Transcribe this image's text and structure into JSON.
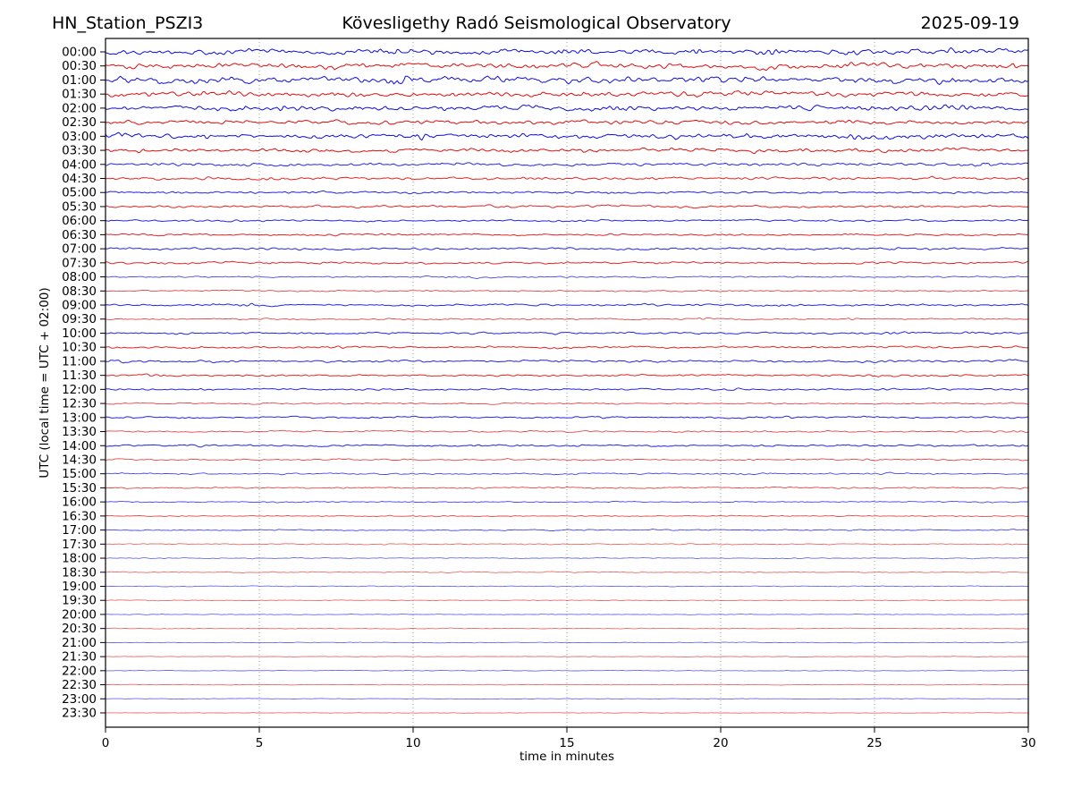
{
  "header": {
    "station": "HN_Station_PSZI3",
    "observatory": "Kövesligethy Radó Seismological Observatory",
    "date": "2025-09-19"
  },
  "chart_data": {
    "type": "line",
    "variant": "helicorder_daily_seismogram",
    "title": "HN_Station_PSZI3 — Kövesligethy Radó Seismological Observatory — 2025-09-19",
    "xlabel": "time in minutes",
    "ylabel": "UTC (local time = UTC + 02:00)",
    "xlim": [
      0,
      30
    ],
    "x_ticks": [
      0,
      5,
      10,
      15,
      20,
      25,
      30
    ],
    "grid_minutes": [
      5,
      10,
      15,
      20,
      25
    ],
    "grid_style": "dotted",
    "legend": "none",
    "minutes_per_row": 30,
    "rows_per_day": 48,
    "color_rule": "traces alternate blue (hh:00) and red (hh:30)",
    "colors": {
      "blue": "#0000dd",
      "red": "#dd0000",
      "grid": "#999999",
      "axis": "#000000",
      "background": "#ffffff"
    },
    "amplitude_note": "amp = relative noise half-amplitude in px; bursts = [minute, gain, width_minutes]",
    "rows": [
      {
        "label": "00:00",
        "color": "blue",
        "amp": 3.2,
        "bursts": [
          [
            9.3,
            1.8
          ],
          [
            12.6,
            1.5
          ],
          [
            15.0,
            1.9
          ],
          [
            19.2,
            3.2,
            0.15
          ],
          [
            21.6,
            1.7
          ],
          [
            24.4,
            1.5
          ],
          [
            27.6,
            1.4
          ]
        ]
      },
      {
        "label": "00:30",
        "color": "red",
        "amp": 3.2,
        "bursts": [
          [
            2.4,
            1.4
          ],
          [
            7.1,
            1.4
          ],
          [
            15.8,
            1.9,
            0.5
          ],
          [
            21.4,
            1.6
          ],
          [
            24.6,
            1.5
          ],
          [
            29.3,
            1.7
          ]
        ]
      },
      {
        "label": "01:00",
        "color": "blue",
        "amp": 3.8,
        "bursts": [
          [
            1.8,
            1.5
          ],
          [
            9.8,
            1.9,
            0.4
          ],
          [
            14.4,
            1.4
          ],
          [
            20.6,
            1.3
          ],
          [
            27.2,
            1.5
          ]
        ]
      },
      {
        "label": "01:30",
        "color": "red",
        "amp": 3.0,
        "bursts": [
          [
            4.2,
            1.3
          ],
          [
            8.4,
            1.5
          ],
          [
            14.9,
            1.3
          ],
          [
            19.6,
            1.4
          ],
          [
            26.6,
            1.4
          ]
        ]
      },
      {
        "label": "02:00",
        "color": "blue",
        "amp": 3.0,
        "bursts": [
          [
            5.6,
            1.3
          ],
          [
            11.2,
            1.3
          ],
          [
            16.6,
            1.4
          ],
          [
            23.2,
            1.3
          ],
          [
            27.6,
            1.4
          ]
        ]
      },
      {
        "label": "02:30",
        "color": "red",
        "amp": 2.6,
        "bursts": [
          [
            3.1,
            1.3
          ],
          [
            10.3,
            1.4
          ],
          [
            18.1,
            1.3
          ],
          [
            24.9,
            1.3
          ]
        ]
      },
      {
        "label": "03:00",
        "color": "blue",
        "amp": 3.0,
        "bursts": [
          [
            0.6,
            1.5
          ],
          [
            10.1,
            1.6
          ],
          [
            16.8,
            1.3
          ],
          [
            24.3,
            1.5
          ]
        ]
      },
      {
        "label": "03:30",
        "color": "red",
        "amp": 2.4,
        "bursts": [
          [
            1.1,
            1.3
          ],
          [
            9.4,
            1.2
          ],
          [
            21.2,
            1.3
          ],
          [
            27.4,
            1.2
          ]
        ]
      },
      {
        "label": "04:00",
        "color": "blue",
        "amp": 1.8,
        "bursts": [
          [
            6.3,
            1.3
          ],
          [
            17.2,
            1.2
          ],
          [
            28.7,
            1.8,
            0.3
          ]
        ]
      },
      {
        "label": "04:30",
        "color": "red",
        "amp": 1.8,
        "bursts": [
          [
            4.4,
            1.2
          ],
          [
            13.6,
            1.2
          ],
          [
            22.5,
            1.2
          ]
        ]
      },
      {
        "label": "05:00",
        "color": "blue",
        "amp": 1.5,
        "bursts": [
          [
            8.2,
            1.2
          ],
          [
            19.4,
            1.2
          ]
        ]
      },
      {
        "label": "05:30",
        "color": "red",
        "amp": 1.4,
        "bursts": [
          [
            5.3,
            1.2
          ],
          [
            16.2,
            1.2
          ],
          [
            26.8,
            1.2
          ]
        ]
      },
      {
        "label": "06:00",
        "color": "blue",
        "amp": 1.3,
        "bursts": [
          [
            3.5,
            1.6,
            0.25
          ],
          [
            14.3,
            1.2
          ],
          [
            23.6,
            1.2
          ]
        ]
      },
      {
        "label": "06:30",
        "color": "red",
        "amp": 1.2,
        "bursts": [
          [
            9.2,
            1.2
          ],
          [
            20.4,
            1.2
          ]
        ]
      },
      {
        "label": "07:00",
        "color": "blue",
        "amp": 1.3,
        "bursts": [
          [
            6.4,
            1.2
          ],
          [
            16.5,
            1.2
          ],
          [
            25.6,
            1.6,
            0.3
          ]
        ]
      },
      {
        "label": "07:30",
        "color": "red",
        "amp": 1.3,
        "bursts": [
          [
            2.1,
            1.3
          ],
          [
            4.3,
            1.3
          ],
          [
            14.7,
            1.2
          ],
          [
            24.2,
            1.2
          ]
        ]
      },
      {
        "label": "08:00",
        "color": "blue",
        "amp": 0.9,
        "bursts": [
          [
            11.7,
            2.1,
            0.7
          ]
        ]
      },
      {
        "label": "08:30",
        "color": "red",
        "amp": 0.9,
        "bursts": [
          [
            7.6,
            1.2
          ],
          [
            18.3,
            1.2
          ],
          [
            27.9,
            1.3
          ]
        ]
      },
      {
        "label": "09:00",
        "color": "blue",
        "amp": 1.3,
        "bursts": [
          [
            4.8,
            1.7,
            1.1
          ],
          [
            12.9,
            1.4
          ],
          [
            21.7,
            1.2
          ]
        ]
      },
      {
        "label": "09:30",
        "color": "red",
        "amp": 1.0,
        "bursts": [
          [
            4.1,
            1.4
          ],
          [
            11.5,
            1.4,
            0.3
          ],
          [
            19.4,
            1.5
          ],
          [
            24.1,
            1.4
          ]
        ]
      },
      {
        "label": "10:00",
        "color": "blue",
        "amp": 1.2,
        "bursts": [
          [
            0.8,
            1.6,
            0.3
          ],
          [
            14.6,
            1.6,
            0.4
          ],
          [
            22.9,
            1.4
          ],
          [
            25.7,
            1.4
          ],
          [
            28.1,
            1.3
          ]
        ]
      },
      {
        "label": "10:30",
        "color": "red",
        "amp": 1.2,
        "bursts": [
          [
            2.6,
            1.3
          ],
          [
            7.6,
            1.7,
            0.4
          ],
          [
            14.9,
            1.8,
            0.5
          ],
          [
            22.3,
            1.3
          ],
          [
            26.9,
            1.5
          ]
        ]
      },
      {
        "label": "11:00",
        "color": "blue",
        "amp": 1.4,
        "bursts": [
          [
            0.5,
            1.8,
            0.4
          ],
          [
            3.7,
            1.5
          ],
          [
            9.3,
            1.3
          ],
          [
            17.6,
            1.4
          ],
          [
            22.4,
            1.3
          ],
          [
            25.1,
            1.4
          ],
          [
            29.6,
            1.5
          ]
        ]
      },
      {
        "label": "11:30",
        "color": "red",
        "amp": 1.2,
        "bursts": [
          [
            1.6,
            1.5,
            0.5
          ],
          [
            10.1,
            1.3
          ],
          [
            17.3,
            1.3
          ],
          [
            25.1,
            1.4
          ]
        ]
      },
      {
        "label": "12:00",
        "color": "blue",
        "amp": 1.1,
        "bursts": [
          [
            3.1,
            1.4
          ],
          [
            8.9,
            1.3
          ],
          [
            17.1,
            1.5
          ],
          [
            20.6,
            1.4
          ],
          [
            25.4,
            1.4
          ]
        ]
      },
      {
        "label": "12:30",
        "color": "red",
        "amp": 1.0,
        "bursts": [
          [
            5.1,
            1.3
          ],
          [
            12.3,
            1.3
          ],
          [
            21.8,
            1.2
          ]
        ]
      },
      {
        "label": "13:00",
        "color": "blue",
        "amp": 1.1,
        "bursts": [
          [
            7.4,
            1.3
          ],
          [
            16.6,
            1.5
          ],
          [
            22.4,
            1.6,
            0.3
          ],
          [
            28.2,
            1.3
          ]
        ]
      },
      {
        "label": "13:30",
        "color": "red",
        "amp": 1.0,
        "bursts": [
          [
            10.6,
            1.3
          ],
          [
            18.9,
            1.2
          ],
          [
            29.7,
            1.7,
            0.25
          ]
        ]
      },
      {
        "label": "14:00",
        "color": "blue",
        "amp": 1.1,
        "bursts": [
          [
            2.8,
            1.5,
            0.4
          ],
          [
            15.4,
            1.4
          ],
          [
            21.4,
            1.7,
            0.4
          ],
          [
            26.3,
            1.3
          ]
        ]
      },
      {
        "label": "14:30",
        "color": "red",
        "amp": 1.0,
        "bursts": [
          [
            0.4,
            1.5,
            0.3
          ],
          [
            13.1,
            1.2
          ],
          [
            24.9,
            1.3
          ]
        ]
      },
      {
        "label": "15:00",
        "color": "blue",
        "amp": 1.0,
        "bursts": [
          [
            6.2,
            1.2
          ],
          [
            17.4,
            1.2
          ],
          [
            25.4,
            1.6,
            0.3
          ]
        ]
      },
      {
        "label": "15:30",
        "color": "red",
        "amp": 0.9,
        "bursts": [
          [
            0.6,
            1.4
          ],
          [
            8.3,
            1.2
          ],
          [
            15.8,
            1.3
          ],
          [
            17.2,
            1.3
          ],
          [
            19.1,
            1.3
          ],
          [
            26.4,
            1.2
          ]
        ]
      },
      {
        "label": "16:00",
        "color": "blue",
        "amp": 0.75,
        "bursts": [
          [
            5.4,
            1.2
          ],
          [
            11.8,
            1.3
          ],
          [
            22.6,
            1.2
          ]
        ]
      },
      {
        "label": "16:30",
        "color": "red",
        "amp": 0.7,
        "bursts": [
          [
            9.4,
            1.2
          ],
          [
            19.8,
            1.2
          ]
        ]
      },
      {
        "label": "17:00",
        "color": "blue",
        "amp": 0.75,
        "bursts": [
          [
            1.9,
            1.4,
            0.3
          ],
          [
            14.2,
            1.2
          ],
          [
            26.2,
            1.2
          ]
        ]
      },
      {
        "label": "17:30",
        "color": "red",
        "amp": 0.65,
        "bursts": [
          [
            7.2,
            1.2
          ],
          [
            18.4,
            1.2
          ]
        ]
      },
      {
        "label": "18:00",
        "color": "blue",
        "amp": 0.6,
        "bursts": [
          [
            4.6,
            1.2
          ],
          [
            21.3,
            1.2
          ]
        ]
      },
      {
        "label": "18:30",
        "color": "red",
        "amp": 0.6,
        "bursts": [
          [
            11.4,
            1.2
          ],
          [
            24.6,
            1.2
          ]
        ]
      },
      {
        "label": "19:00",
        "color": "blue",
        "amp": 0.5,
        "bursts": [
          [
            8.8,
            1.2
          ]
        ]
      },
      {
        "label": "19:30",
        "color": "red",
        "amp": 0.5,
        "bursts": [
          [
            15.4,
            1.3,
            0.3
          ]
        ]
      },
      {
        "label": "20:00",
        "color": "blue",
        "amp": 0.45,
        "bursts": []
      },
      {
        "label": "20:30",
        "color": "red",
        "amp": 0.45,
        "bursts": []
      },
      {
        "label": "21:00",
        "color": "blue",
        "amp": 0.4,
        "bursts": [
          [
            20.8,
            1.2
          ]
        ]
      },
      {
        "label": "21:30",
        "color": "red",
        "amp": 0.4,
        "bursts": []
      },
      {
        "label": "22:00",
        "color": "blue",
        "amp": 0.4,
        "bursts": [
          [
            9.6,
            1.2
          ]
        ]
      },
      {
        "label": "22:30",
        "color": "red",
        "amp": 0.4,
        "bursts": []
      },
      {
        "label": "23:00",
        "color": "blue",
        "amp": 0.35,
        "bursts": [
          [
            14.2,
            1.2
          ]
        ]
      },
      {
        "label": "23:30",
        "color": "red",
        "amp": 0.35,
        "bursts": []
      }
    ]
  }
}
